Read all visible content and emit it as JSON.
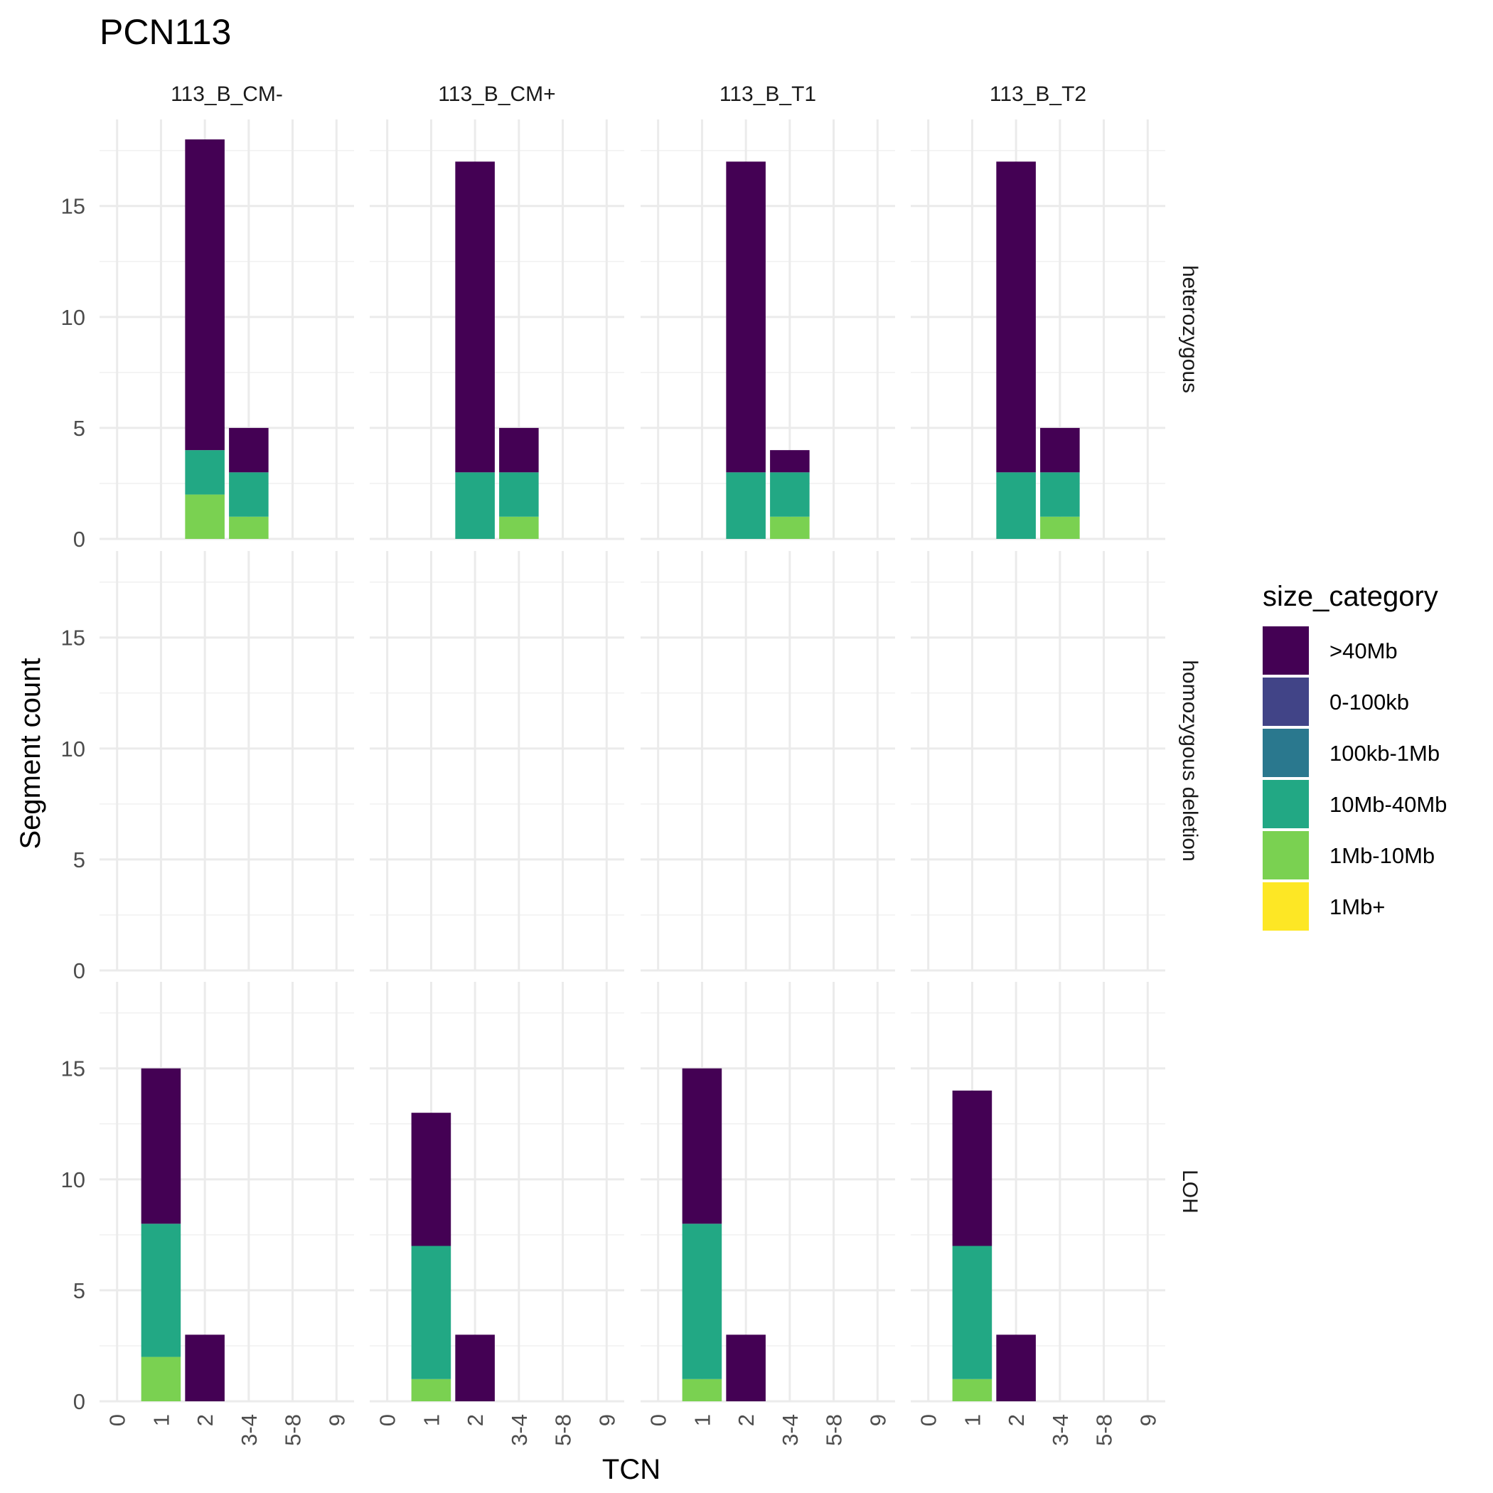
{
  "chart_data": {
    "type": "bar",
    "stacked": true,
    "title": "PCN113",
    "xlabel": "TCN",
    "ylabel": "Segment count",
    "ylim": [
      0,
      18.9
    ],
    "yticks": [
      0,
      5,
      10,
      15
    ],
    "grid": true,
    "legend_position": "right",
    "legend_title": "size_category",
    "categories": [
      "0",
      "1",
      "2",
      "3-4",
      "5-8",
      "9"
    ],
    "columns": [
      "113_B_CM-",
      "113_B_CM+",
      "113_B_T1",
      "113_B_T2"
    ],
    "rows": [
      "heterozygous",
      "homozygous deletion",
      "LOH"
    ],
    "size_categories": [
      {
        "name": ">40Mb",
        "color": "#440154"
      },
      {
        "name": "0-100kb",
        "color": "#414487"
      },
      {
        "name": "100kb-1Mb",
        "color": "#2A788E"
      },
      {
        "name": "10Mb-40Mb",
        "color": "#22A884"
      },
      {
        "name": "1Mb-10Mb",
        "color": "#7AD151"
      },
      {
        "name": "1Mb+",
        "color": "#FDE725"
      }
    ],
    "stack_order_bottom_to_top": [
      "1Mb-10Mb",
      "10Mb-40Mb",
      ">40Mb"
    ],
    "panels": [
      {
        "row": "heterozygous",
        "column": "113_B_CM-",
        "bars": [
          {
            "x": "2",
            "segments": {
              "1Mb-10Mb": 2,
              "10Mb-40Mb": 2,
              ">40Mb": 14
            }
          },
          {
            "x": "3-4",
            "segments": {
              "1Mb-10Mb": 1,
              "10Mb-40Mb": 2,
              ">40Mb": 2
            }
          }
        ]
      },
      {
        "row": "heterozygous",
        "column": "113_B_CM+",
        "bars": [
          {
            "x": "2",
            "segments": {
              "10Mb-40Mb": 3,
              ">40Mb": 14
            }
          },
          {
            "x": "3-4",
            "segments": {
              "1Mb-10Mb": 1,
              "10Mb-40Mb": 2,
              ">40Mb": 2
            }
          }
        ]
      },
      {
        "row": "heterozygous",
        "column": "113_B_T1",
        "bars": [
          {
            "x": "2",
            "segments": {
              "10Mb-40Mb": 3,
              ">40Mb": 14
            }
          },
          {
            "x": "3-4",
            "segments": {
              "1Mb-10Mb": 1,
              "10Mb-40Mb": 2,
              ">40Mb": 1
            }
          }
        ]
      },
      {
        "row": "heterozygous",
        "column": "113_B_T2",
        "bars": [
          {
            "x": "2",
            "segments": {
              "10Mb-40Mb": 3,
              ">40Mb": 14
            }
          },
          {
            "x": "3-4",
            "segments": {
              "1Mb-10Mb": 1,
              "10Mb-40Mb": 2,
              ">40Mb": 2
            }
          }
        ]
      },
      {
        "row": "homozygous deletion",
        "column": "113_B_CM-",
        "bars": []
      },
      {
        "row": "homozygous deletion",
        "column": "113_B_CM+",
        "bars": []
      },
      {
        "row": "homozygous deletion",
        "column": "113_B_T1",
        "bars": []
      },
      {
        "row": "homozygous deletion",
        "column": "113_B_T2",
        "bars": []
      },
      {
        "row": "LOH",
        "column": "113_B_CM-",
        "bars": [
          {
            "x": "1",
            "segments": {
              "1Mb-10Mb": 2,
              "10Mb-40Mb": 6,
              ">40Mb": 7
            }
          },
          {
            "x": "2",
            "segments": {
              ">40Mb": 3
            }
          }
        ]
      },
      {
        "row": "LOH",
        "column": "113_B_CM+",
        "bars": [
          {
            "x": "1",
            "segments": {
              "1Mb-10Mb": 1,
              "10Mb-40Mb": 6,
              ">40Mb": 6
            }
          },
          {
            "x": "2",
            "segments": {
              ">40Mb": 3
            }
          }
        ]
      },
      {
        "row": "LOH",
        "column": "113_B_T1",
        "bars": [
          {
            "x": "1",
            "segments": {
              "1Mb-10Mb": 1,
              "10Mb-40Mb": 7,
              ">40Mb": 7
            }
          },
          {
            "x": "2",
            "segments": {
              ">40Mb": 3
            }
          }
        ]
      },
      {
        "row": "LOH",
        "column": "113_B_T2",
        "bars": [
          {
            "x": "1",
            "segments": {
              "1Mb-10Mb": 1,
              "10Mb-40Mb": 6,
              ">40Mb": 7
            }
          },
          {
            "x": "2",
            "segments": {
              ">40Mb": 3
            }
          }
        ]
      }
    ]
  }
}
